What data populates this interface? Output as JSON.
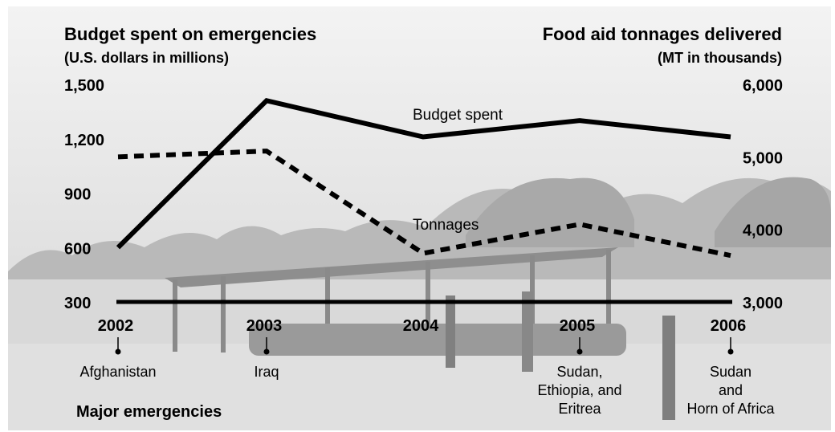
{
  "chart_data": {
    "type": "line",
    "title_left": "Budget spent on emergencies",
    "subtitle_left": "(U.S. dollars in millions)",
    "title_right": "Food aid tonnages delivered",
    "subtitle_right": "(MT in thousands)",
    "categories": [
      "2002",
      "2003",
      "2004",
      "2005",
      "2006"
    ],
    "emergencies": [
      [
        "Afghanistan"
      ],
      [
        "Iraq"
      ],
      [],
      [
        "Sudan,",
        "Ethiopia, and",
        "Eritrea"
      ],
      [
        "Sudan",
        "and",
        "Horn of Africa"
      ]
    ],
    "emergencies_label": "Major emergencies",
    "y_left": {
      "ticks": [
        "1,500",
        "1,200",
        "900",
        "600",
        "300"
      ],
      "tick_values": [
        1500,
        1200,
        900,
        600,
        300
      ],
      "ylim": [
        300,
        1500
      ]
    },
    "y_right": {
      "ticks": [
        "6,000",
        "5,000",
        "4,000",
        "3,000"
      ],
      "tick_values": [
        6000,
        5000,
        4000,
        3000
      ],
      "ylim": [
        3000,
        6000
      ]
    },
    "series": [
      {
        "name": "Budget spent",
        "axis": "left",
        "style": "solid",
        "values": [
          600,
          1410,
          1210,
          1300,
          1210
        ]
      },
      {
        "name": "Tonnages",
        "axis": "right",
        "style": "dashed",
        "values": [
          5000,
          5080,
          3670,
          4070,
          3640
        ]
      }
    ],
    "grid": false
  }
}
